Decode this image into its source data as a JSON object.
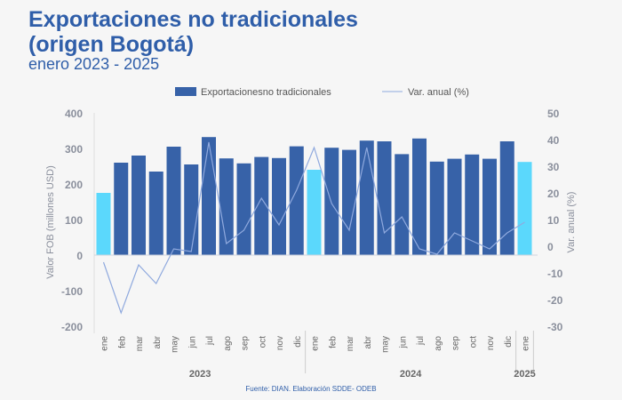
{
  "title_line1": "Exportaciones no tradicionales",
  "title_line2": "(origen Bogotá)",
  "subtitle": "enero 2023 - 2025",
  "source": "Fuente: DIAN. Elaboración SDDE- ODEB",
  "colors": {
    "bar": "#3762a8",
    "bar_highlight": "#5bd8fc",
    "line": "#8fa9de",
    "axis_text": "#8a8f9c"
  },
  "chart_data": {
    "type": "bar+line",
    "months": [
      "ene",
      "feb",
      "mar",
      "abr",
      "may",
      "jun",
      "jul",
      "ago",
      "sep",
      "oct",
      "nov",
      "dic",
      "ene",
      "feb",
      "mar",
      "abr",
      "may",
      "jun",
      "jul",
      "ago",
      "sep",
      "oct",
      "nov",
      "dic",
      "ene"
    ],
    "years": [
      {
        "label": "2023",
        "start": 0,
        "end": 11
      },
      {
        "label": "2024",
        "start": 12,
        "end": 23
      },
      {
        "label": "2025",
        "start": 24,
        "end": 24
      }
    ],
    "highlight": [
      0,
      12,
      24
    ],
    "series": [
      {
        "name": "Exportacionesno tradicionales",
        "type": "bar",
        "axis": "left",
        "values": [
          175,
          260,
          280,
          235,
          305,
          255,
          332,
          272,
          258,
          276,
          273,
          306,
          240,
          302,
          296,
          322,
          320,
          284,
          328,
          263,
          271,
          283,
          271,
          320,
          262
        ]
      },
      {
        "name": "Var. anual (%)",
        "type": "line",
        "axis": "right",
        "values": [
          -6,
          -25,
          -7,
          -14,
          -1,
          -2,
          39,
          1,
          6,
          18,
          8,
          21,
          37,
          16,
          6,
          37,
          5,
          11,
          -1,
          -3,
          5,
          2,
          -1,
          5,
          9
        ]
      }
    ],
    "ylabel": "Valor FOB (millones USD)",
    "ylim": [
      -200,
      400
    ],
    "yticks": [
      -200,
      -100,
      0,
      100,
      200,
      300,
      400
    ],
    "y2label": "Var. anual (%)",
    "y2lim": [
      -30,
      50
    ],
    "y2ticks": [
      -30,
      -20,
      -10,
      0,
      10,
      20,
      30,
      40,
      50
    ],
    "legend": "top"
  }
}
